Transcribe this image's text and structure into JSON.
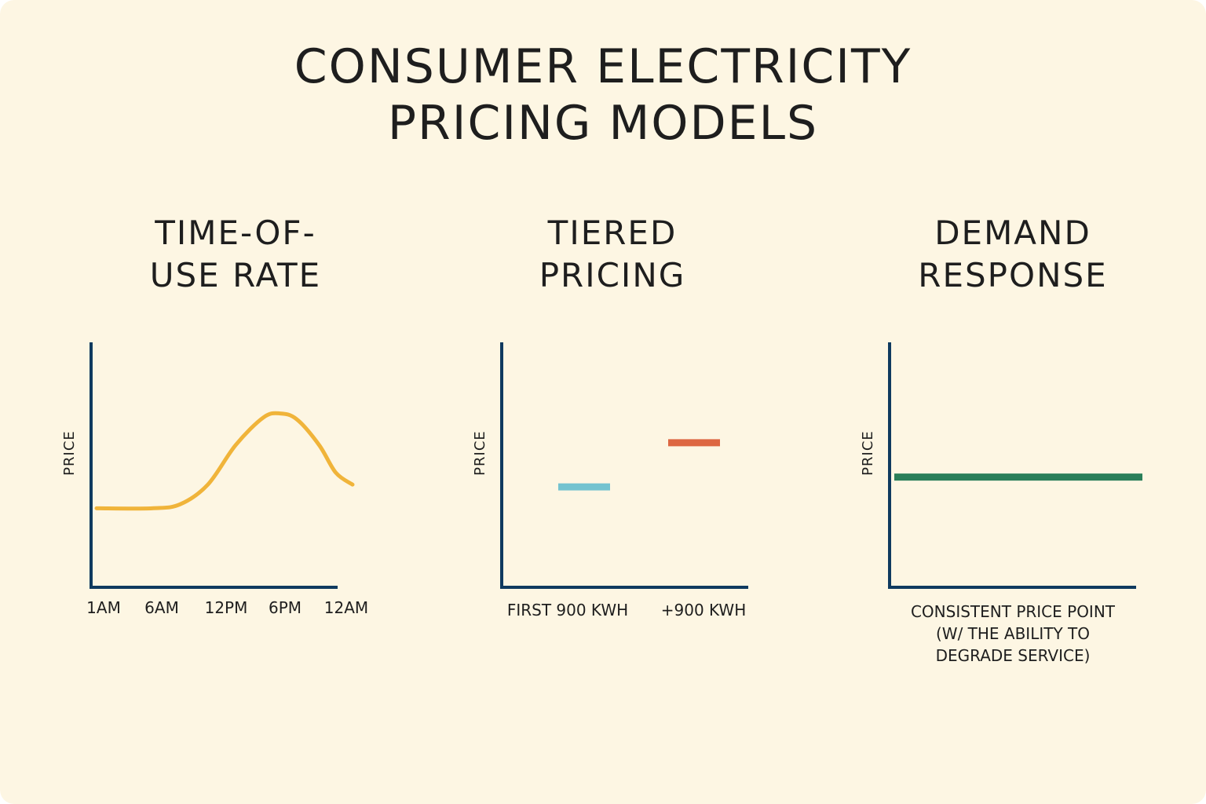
{
  "title": {
    "line1": "CONSUMER ELECTRICITY",
    "line2": "PRICING MODELS"
  },
  "colors": {
    "background": "#fdf6e3",
    "axis": "#0f3a5f",
    "tou_curve": "#f0b43a",
    "tier1": "#74c3d0",
    "tier2": "#dd6742",
    "flat": "#2a7f5a",
    "text": "#1e1e1e"
  },
  "chart_data": [
    {
      "type": "line",
      "title_line1": "TIME-OF-",
      "title_line2": "USE RATE",
      "ylabel": "PRICE",
      "categories": [
        "1AM",
        "6AM",
        "12PM",
        "6PM",
        "12AM"
      ],
      "x": [
        0,
        1,
        1.5,
        2,
        2.5,
        3,
        3.3,
        3.6,
        4,
        4.3,
        4.6
      ],
      "y": [
        2.0,
        2.0,
        2.1,
        2.6,
        3.6,
        4.3,
        4.4,
        4.25,
        3.6,
        2.9,
        2.6
      ],
      "xlim": [
        0,
        4.6
      ],
      "ylim": [
        0,
        6.2
      ],
      "grid": false
    },
    {
      "type": "bar",
      "title_line1": "TIERED",
      "title_line2": "PRICING",
      "ylabel": "PRICE",
      "categories": [
        "FIRST 900 KWH",
        "+900 KWH"
      ],
      "values": [
        4.1,
        5.9
      ],
      "ylim": [
        0,
        10
      ],
      "grid": false
    },
    {
      "type": "line",
      "title_line1": "DEMAND",
      "title_line2": "RESPONSE",
      "ylabel": "PRICE",
      "xlabel_lines": [
        "CONSISTENT PRICE POINT",
        "(W/ THE ABILITY TO",
        "DEGRADE SERVICE)"
      ],
      "x": [
        0,
        1
      ],
      "y": [
        4.5,
        4.5
      ],
      "ylim": [
        0,
        10
      ],
      "grid": false
    }
  ]
}
